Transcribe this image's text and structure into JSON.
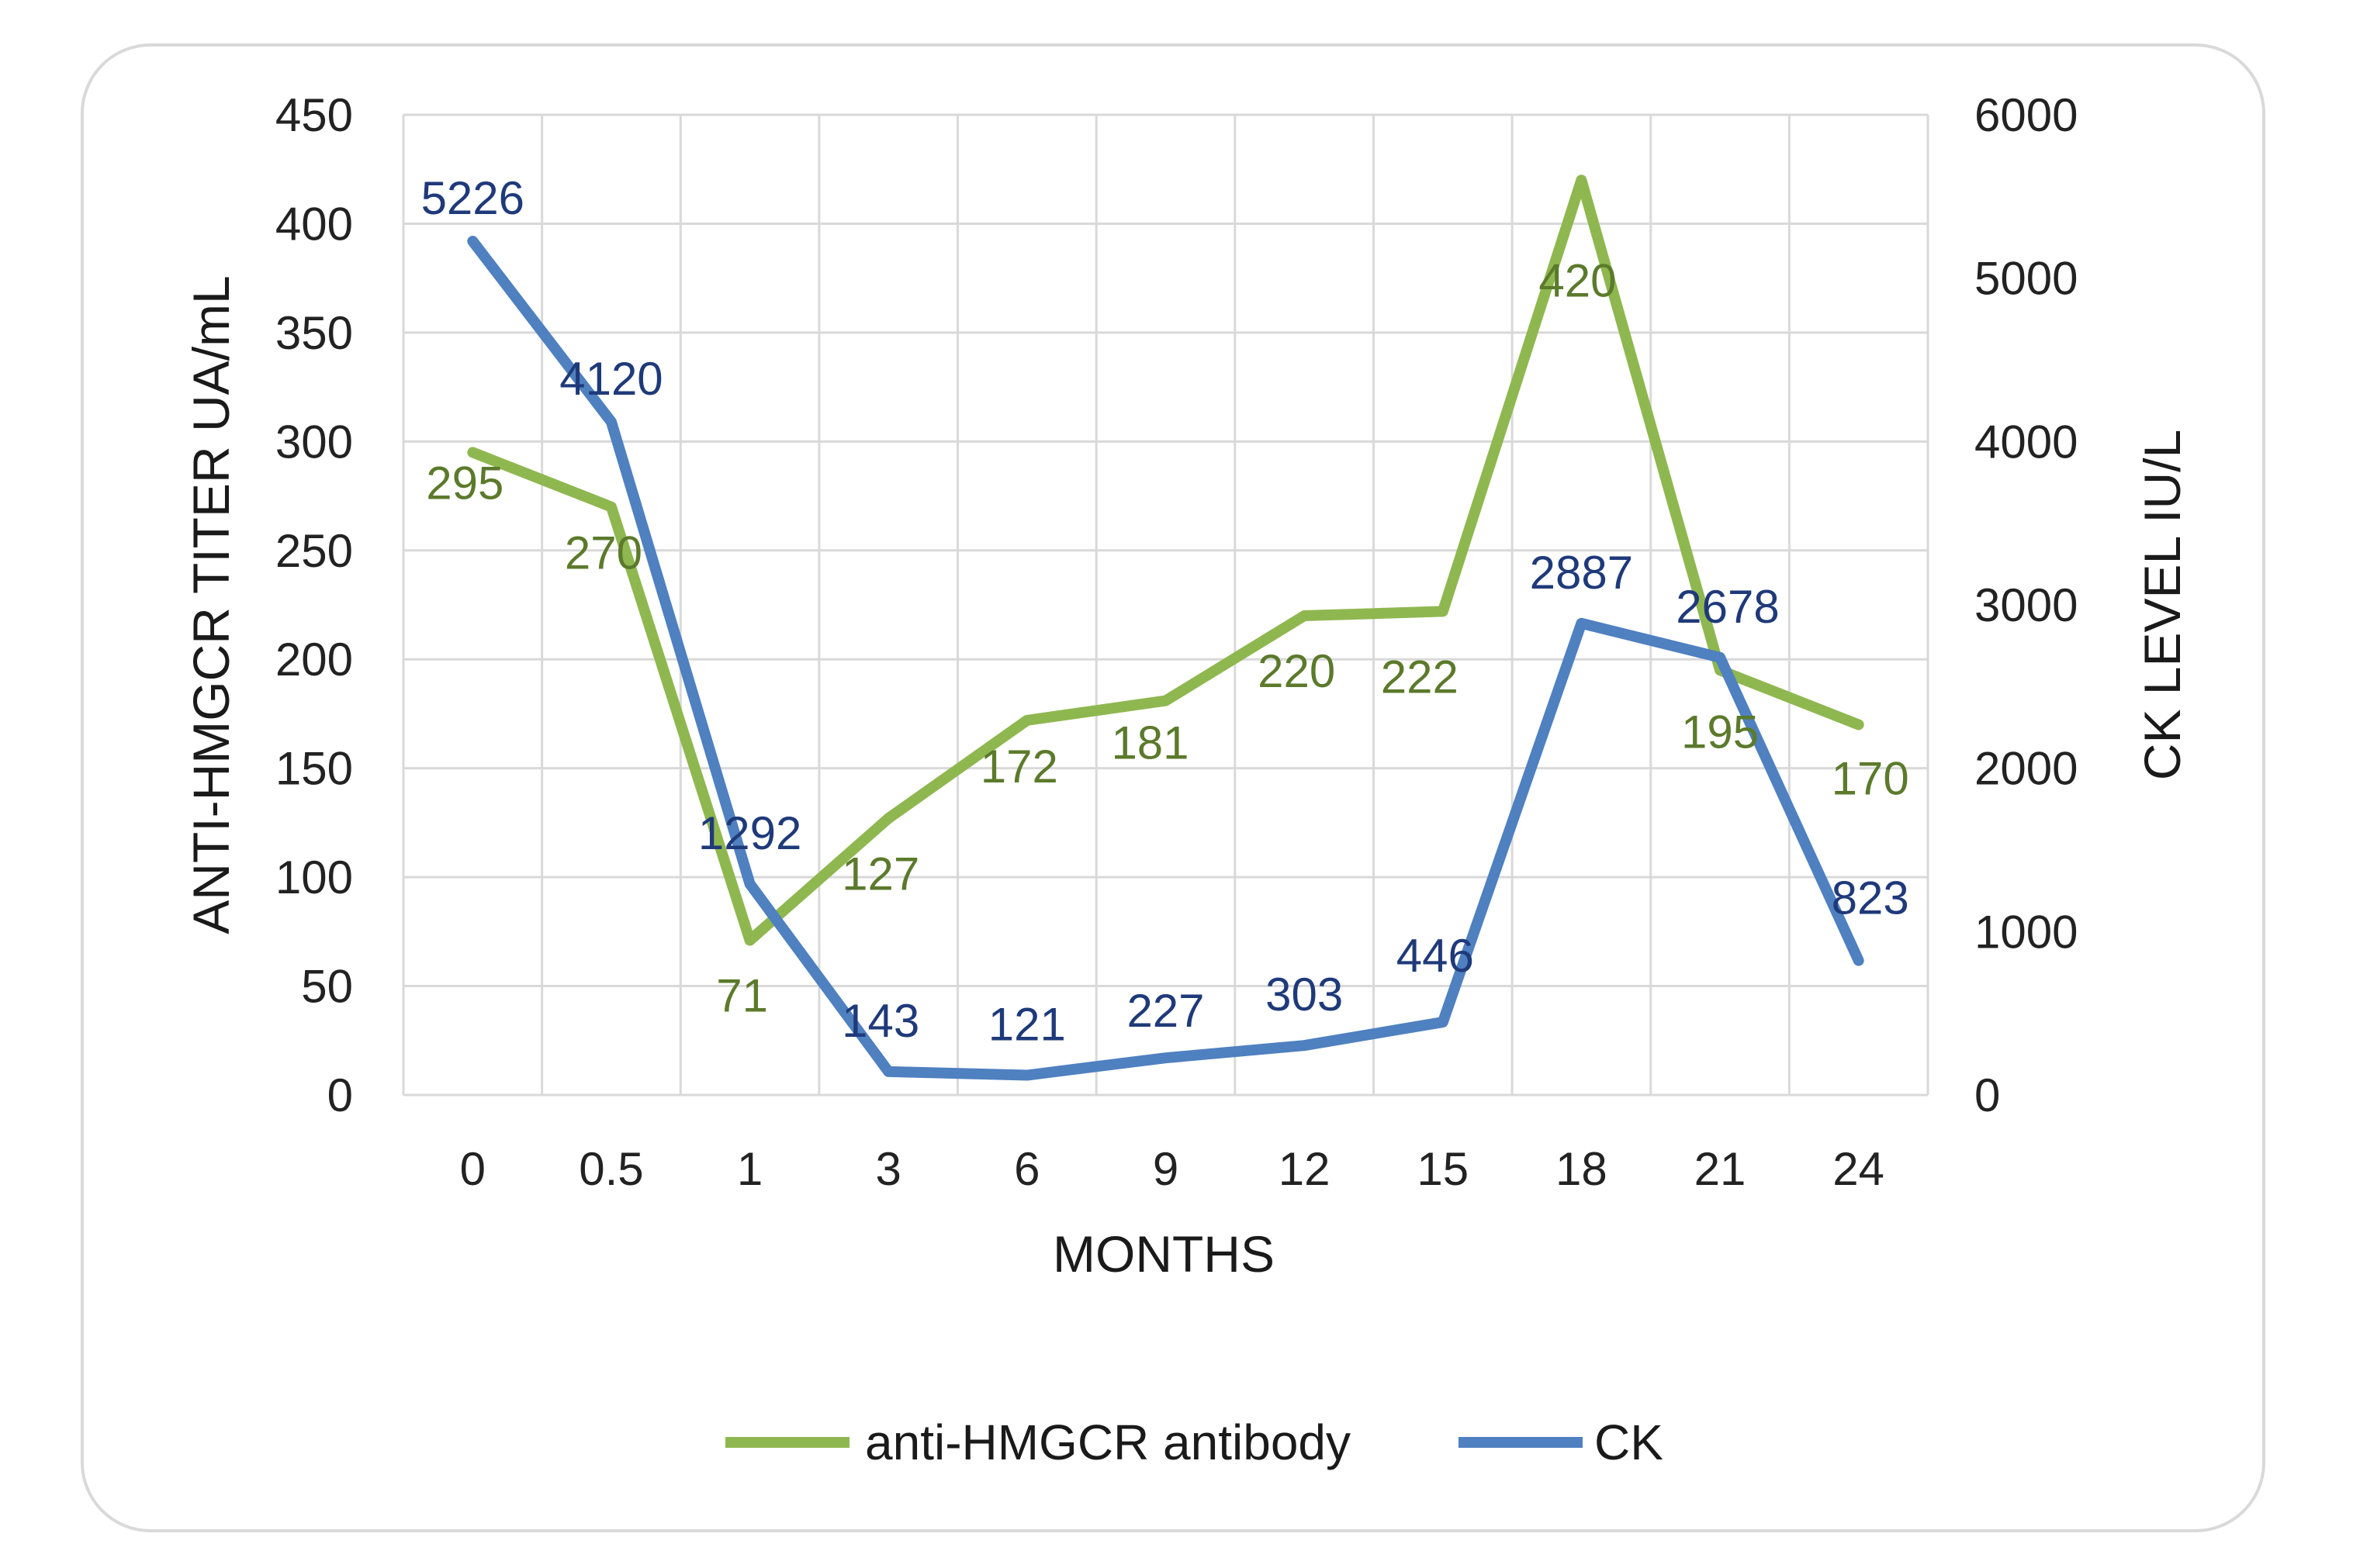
{
  "chart_data": {
    "type": "line",
    "title": "",
    "categories": [
      "0",
      "0.5",
      "1",
      "3",
      "6",
      "9",
      "12",
      "15",
      "18",
      "21",
      "24"
    ],
    "xlabel": "MONTHS",
    "ylabel_left": "ANTI-HMGCR TITER UA/mL",
    "ylabel_right": "CK LEVEL IU/L",
    "ylim_left": [
      0,
      450
    ],
    "ylim_right": [
      0,
      6000
    ],
    "yticks_left": [
      "0",
      "50",
      "100",
      "150",
      "200",
      "250",
      "300",
      "350",
      "400",
      "450"
    ],
    "yticks_right": [
      "0",
      "1000",
      "2000",
      "3000",
      "4000",
      "5000",
      "6000"
    ],
    "grid": true,
    "legend_position": "bottom",
    "series": [
      {
        "name": "anti-HMGCR antibody",
        "axis": "left",
        "color": "#8fb750",
        "label_color": "#5b7a2b",
        "values": [
          295,
          270,
          71,
          127,
          172,
          181,
          220,
          222,
          420,
          195,
          170
        ],
        "labels": [
          "295",
          "270",
          "71",
          "127",
          "172",
          "181",
          "220",
          "222",
          "420",
          "195",
          "170"
        ]
      },
      {
        "name": "CK",
        "axis": "right",
        "color": "#4f80c0",
        "label_color": "#1f3a7a",
        "values": [
          5226,
          4120,
          1292,
          143,
          121,
          227,
          303,
          446,
          2887,
          2678,
          823
        ],
        "labels": [
          "5226",
          "4120",
          "1292",
          "143",
          "121",
          "227",
          "303",
          "446",
          "2887",
          "2678",
          "823"
        ]
      }
    ]
  }
}
